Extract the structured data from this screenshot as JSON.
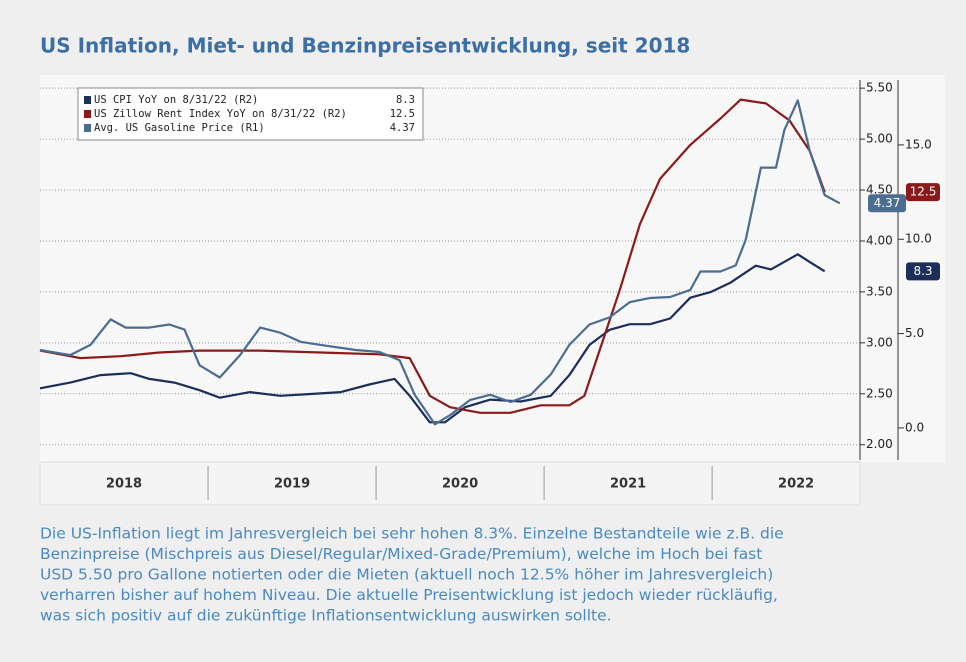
{
  "chart_data": {
    "type": "line",
    "title": "US Inflation, Miet- und Benzinpreisentwicklung, seit 2018",
    "year_labels": [
      "2018",
      "2019",
      "2020",
      "2021",
      "2022"
    ],
    "xlim": [
      2018,
      2022.88
    ],
    "ylim": [
      1.85,
      5.58
    ],
    "yticks": [
      {
        "value": 2,
        "label": "2.00"
      },
      {
        "value": 2.5,
        "label": "2.50"
      },
      {
        "value": 3,
        "label": "3.00"
      },
      {
        "value": 3.5,
        "label": "3.50"
      },
      {
        "value": 4,
        "label": "4.00"
      },
      {
        "value": 4.5,
        "label": "4.50"
      },
      {
        "value": 5,
        "label": "5.00"
      },
      {
        "value": 5.5,
        "label": "5.50"
      }
    ],
    "y2lim": [
      -1.7,
      18.44
    ],
    "y2ticks": [
      {
        "value": 0,
        "label": "0.0"
      },
      {
        "value": 5,
        "label": "5.0"
      },
      {
        "value": 10,
        "label": "10.0"
      },
      {
        "value": 15,
        "label": "15.0"
      }
    ],
    "grid": true,
    "legend_position": "upper left",
    "series": [
      {
        "name": "US CPI YoY on 8/31/22 (R2)",
        "color": "#1c2f5a",
        "axis": "y2",
        "value_label": "8.3",
        "x": [
          2018.0,
          2018.18,
          2018.36,
          2018.54,
          2018.65,
          2018.8,
          2018.95,
          2019.07,
          2019.25,
          2019.43,
          2019.61,
          2019.79,
          2019.96,
          2020.11,
          2020.2,
          2020.32,
          2020.41,
          2020.53,
          2020.68,
          2020.86,
          2021.04,
          2021.15,
          2021.27,
          2021.39,
          2021.51,
          2021.63,
          2021.75,
          2021.87,
          2021.99,
          2022.11,
          2022.26,
          2022.35,
          2022.51,
          2022.58,
          2022.67
        ],
        "values": [
          2.1,
          2.4,
          2.8,
          2.9,
          2.6,
          2.4,
          2.0,
          1.6,
          1.9,
          1.7,
          1.8,
          1.9,
          2.3,
          2.6,
          1.7,
          0.3,
          0.3,
          1.1,
          1.5,
          1.4,
          1.7,
          2.8,
          4.4,
          5.2,
          5.5,
          5.5,
          5.8,
          6.9,
          7.2,
          7.7,
          8.6,
          8.4,
          9.2,
          8.8,
          8.3
        ]
      },
      {
        "name": "US Zillow Rent Index YoY on 8/31/22 (R2)",
        "color": "#8b1a1a",
        "axis": "y2",
        "value_label": "12.5",
        "x": [
          2018.0,
          2018.24,
          2018.48,
          2018.71,
          2018.95,
          2019.31,
          2019.67,
          2020.02,
          2020.2,
          2020.32,
          2020.44,
          2020.62,
          2020.8,
          2020.98,
          2021.15,
          2021.24,
          2021.33,
          2021.45,
          2021.57,
          2021.69,
          2021.87,
          2022.05,
          2022.17,
          2022.32,
          2022.46,
          2022.58,
          2022.67
        ],
        "values": [
          4.1,
          3.7,
          3.8,
          4.0,
          4.1,
          4.1,
          4.0,
          3.9,
          3.7,
          1.7,
          1.1,
          0.8,
          0.8,
          1.2,
          1.2,
          1.7,
          4.1,
          7.3,
          10.8,
          13.2,
          15.0,
          16.4,
          17.4,
          17.2,
          16.3,
          14.7,
          12.5
        ]
      },
      {
        "name": "Avg. US Gasoline Price (R1)",
        "color": "#4b6d8f",
        "axis": "y",
        "value_label": "4.37",
        "x": [
          2018.0,
          2018.18,
          2018.3,
          2018.42,
          2018.51,
          2018.65,
          2018.77,
          2018.86,
          2018.95,
          2019.07,
          2019.19,
          2019.31,
          2019.43,
          2019.55,
          2019.67,
          2019.88,
          2020.02,
          2020.14,
          2020.23,
          2020.35,
          2020.44,
          2020.56,
          2020.68,
          2020.8,
          2020.92,
          2021.04,
          2021.15,
          2021.27,
          2021.39,
          2021.51,
          2021.63,
          2021.75,
          2021.87,
          2021.93,
          2022.05,
          2022.14,
          2022.2,
          2022.29,
          2022.38,
          2022.43,
          2022.51,
          2022.58,
          2022.67,
          2022.76
        ],
        "values": [
          2.93,
          2.88,
          2.98,
          3.23,
          3.15,
          3.15,
          3.18,
          3.13,
          2.78,
          2.66,
          2.88,
          3.15,
          3.1,
          3.01,
          2.98,
          2.93,
          2.91,
          2.83,
          2.49,
          2.2,
          2.29,
          2.44,
          2.49,
          2.42,
          2.49,
          2.69,
          2.98,
          3.18,
          3.25,
          3.4,
          3.44,
          3.45,
          3.52,
          3.7,
          3.7,
          3.76,
          4.01,
          4.72,
          4.72,
          5.09,
          5.38,
          4.89,
          4.45,
          4.37
        ]
      }
    ],
    "caption": [
      "Die US-Inflation liegt im Jahresvergleich bei sehr hohen 8.3%. Einzelne Bestandteile wie z.B. die",
      "Benzinpreise (Mischpreis aus Diesel/Regular/Mixed-Grade/Premium), welche im Hoch bei fast",
      "USD 5.50 pro Gallone notierten oder die Mieten (aktuell noch 12.5% höher im Jahresvergleich)",
      "verharren bisher auf hohem Niveau. Die aktuelle Preisentwicklung ist jedoch wieder rückläufig,",
      "was sich positiv auf die zukünftige Inflationsentwicklung auswirken sollte."
    ]
  }
}
